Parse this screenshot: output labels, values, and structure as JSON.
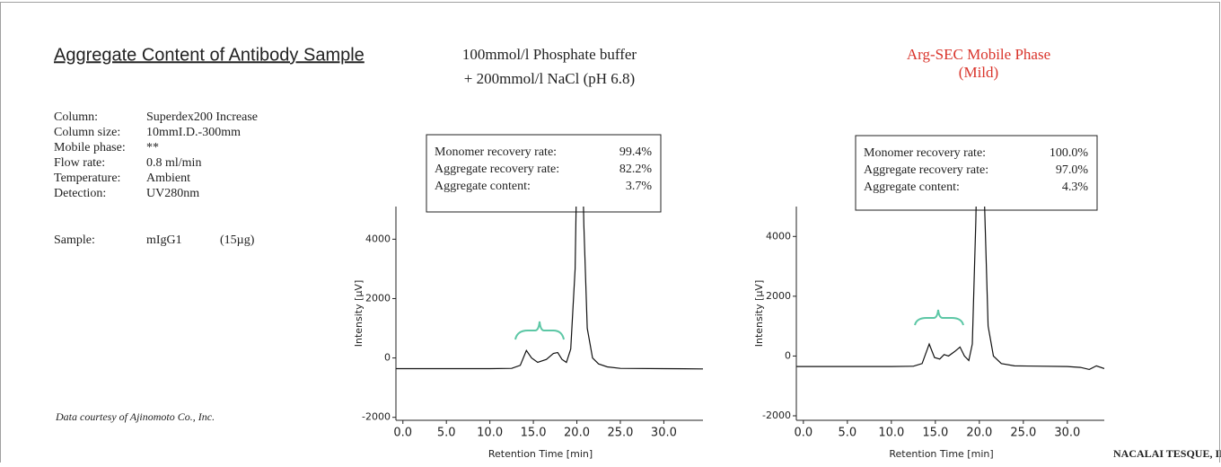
{
  "title": "Aggregate Content of Antibody Sample",
  "conditions": [
    {
      "label": "Column:",
      "value": "Superdex200 Increase"
    },
    {
      "label": "Column size:",
      "value": "10mmI.D.-300mm"
    },
    {
      "label": "Mobile phase:",
      "value": "**"
    },
    {
      "label": "Flow rate:",
      "value": "0.8 ml/min"
    },
    {
      "label": "Temperature:",
      "value": "Ambient"
    },
    {
      "label": "Detection:",
      "value": "UV280nm"
    }
  ],
  "sample": {
    "label": "Sample:",
    "value": "mIgG1",
    "amount": "(15µg)"
  },
  "credit": "Data courtesy of Ajinomoto Co., Inc.",
  "company": "NACALAI TESQUE, INC",
  "chart_data": [
    {
      "type": "line",
      "title": [
        "100mmol/l Phosphate buffer",
        "+ 200mmol/l NaCl (pH 6.8)"
      ],
      "title_color": "#222222",
      "stats": [
        {
          "label": "Monomer recovery rate:",
          "value": "99.4%"
        },
        {
          "label": "Aggregate recovery rate:",
          "value": "82.2%"
        },
        {
          "label": "Aggregate content:",
          "value": "3.7%"
        }
      ],
      "x_label": "Retention Time [min]",
      "y_label": "Intensity [µV]",
      "xlim": [
        -0.8,
        34.5
      ],
      "ylim": [
        -2100,
        5100
      ],
      "xticks": [
        {
          "value": 0,
          "label": "0.0"
        },
        {
          "value": 5,
          "label": "5.0"
        },
        {
          "value": 10,
          "label": "10.0"
        },
        {
          "value": 15,
          "label": "15.0"
        },
        {
          "value": 20,
          "label": "20.0"
        },
        {
          "value": 25,
          "label": "25.0"
        },
        {
          "value": 30,
          "label": "30.0"
        }
      ],
      "yticks": [
        -2000,
        0,
        2000,
        4000
      ],
      "x": [
        -0.8,
        5,
        10,
        12.5,
        13.5,
        14.2,
        14.8,
        15.5,
        16.5,
        17.3,
        17.8,
        18.3,
        18.8,
        19.3,
        19.8,
        20.3,
        20.8,
        21.2,
        21.8,
        22.5,
        23.5,
        25,
        30,
        34.5
      ],
      "series": [
        {
          "color": "#111111",
          "values": [
            -360,
            -360,
            -360,
            -350,
            -250,
            250,
            0,
            -150,
            -50,
            150,
            180,
            -50,
            -150,
            300,
            3000,
            12000,
            4500,
            1000,
            0,
            -200,
            -300,
            -350,
            -360,
            -370
          ]
        }
      ]
    },
    {
      "type": "line",
      "title": [
        "Arg-SEC Mobile Phase",
        "(Mild)"
      ],
      "title_color": "#d9342b",
      "stats": [
        {
          "label": "Monomer recovery rate:",
          "value": "100.0%"
        },
        {
          "label": "Aggregate recovery rate:",
          "value": "97.0%"
        },
        {
          "label": "Aggregate content:",
          "value": "4.3%"
        }
      ],
      "x_label": "Retention Time [min]",
      "y_label": "Intensity [µV]",
      "xlim": [
        -0.8,
        34.2
      ],
      "ylim": [
        -2150,
        5000
      ],
      "xticks": [
        {
          "value": 0,
          "label": "0.0"
        },
        {
          "value": 5,
          "label": "5.0"
        },
        {
          "value": 10,
          "label": "10.0"
        },
        {
          "value": 15,
          "label": "15.0"
        },
        {
          "value": 20,
          "label": "20.0"
        },
        {
          "value": 25,
          "label": "25.0"
        },
        {
          "value": 30,
          "label": "30.0"
        }
      ],
      "yticks": [
        -2000,
        0,
        2000,
        4000
      ],
      "x": [
        -0.8,
        5,
        10,
        12.5,
        13.5,
        14.3,
        14.9,
        15.5,
        16.0,
        16.5,
        17.2,
        17.8,
        18.3,
        18.8,
        19.2,
        19.6,
        20.1,
        20.6,
        21.0,
        21.6,
        22.5,
        24,
        30,
        31.5,
        32.5,
        33.3,
        34.2
      ],
      "series": [
        {
          "color": "#111111",
          "values": [
            -350,
            -350,
            -350,
            -340,
            -250,
            400,
            -50,
            -100,
            50,
            0,
            150,
            300,
            0,
            -150,
            400,
            4500,
            12000,
            5000,
            1000,
            0,
            -250,
            -330,
            -350,
            -380,
            -450,
            -330,
            -420
          ]
        }
      ]
    }
  ]
}
